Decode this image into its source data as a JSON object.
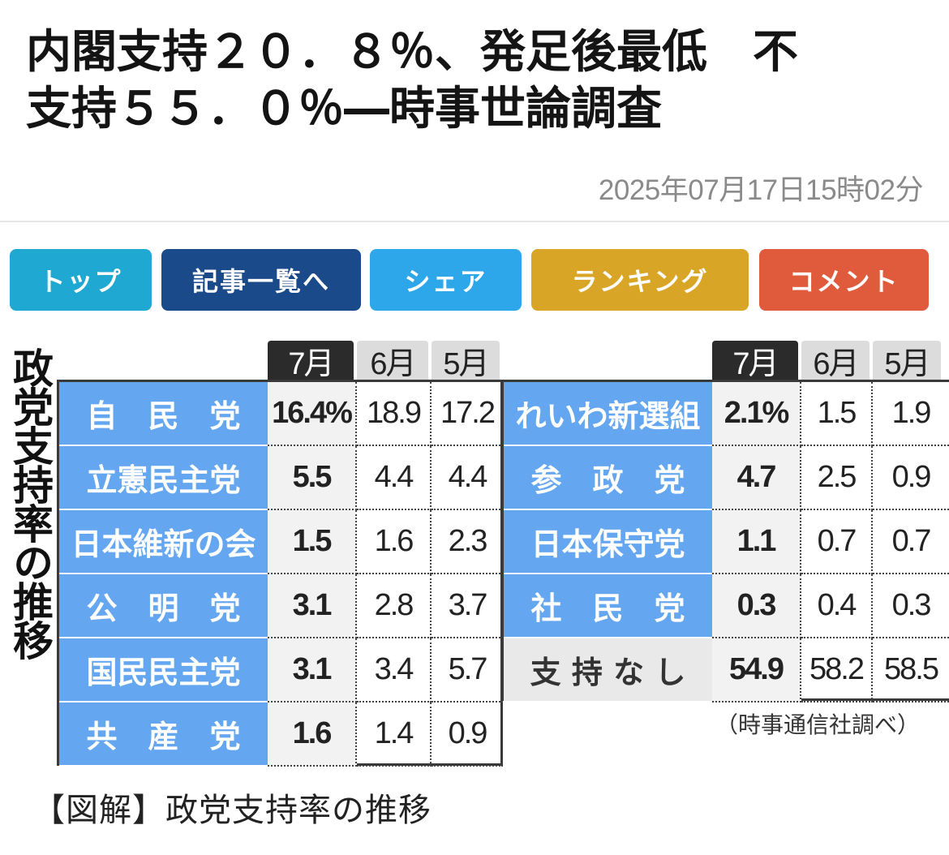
{
  "article": {
    "title_line1": "内閣支持２０．８％、発足後最低　不",
    "title_line2": "支持５５．０％―時事世論調査",
    "timestamp": "2025年07月17日15時02分"
  },
  "nav": {
    "buttons": [
      {
        "label": "トップ",
        "color": "#1fa8d1"
      },
      {
        "label": "記事一覧へ",
        "color": "#1a4a8a"
      },
      {
        "label": "シェア",
        "color": "#2ea6ea"
      },
      {
        "label": "ランキング",
        "color": "#d9a526"
      },
      {
        "label": "コメント",
        "color": "#e05a3c"
      }
    ]
  },
  "infographic": {
    "vertical_title": "政党支持率の推移",
    "months": [
      "7月",
      "6月",
      "5月"
    ],
    "left_table": [
      {
        "party": "自　民　党",
        "jul": "16.4%",
        "jun": "18.9",
        "may": "17.2"
      },
      {
        "party": "立憲民主党",
        "jul": "5.5",
        "jun": "4.4",
        "may": "4.4"
      },
      {
        "party": "日本維新の会",
        "jul": "1.5",
        "jun": "1.6",
        "may": "2.3"
      },
      {
        "party": "公　明　党",
        "jul": "3.1",
        "jun": "2.8",
        "may": "3.7"
      },
      {
        "party": "国民民主党",
        "jul": "3.1",
        "jun": "3.4",
        "may": "5.7"
      },
      {
        "party": "共　産　党",
        "jul": "1.6",
        "jun": "1.4",
        "may": "0.9"
      }
    ],
    "right_table": [
      {
        "party": "れいわ新選組",
        "jul": "2.1%",
        "jun": "1.5",
        "may": "1.9"
      },
      {
        "party": "参　政　党",
        "jul": "4.7",
        "jun": "2.5",
        "may": "0.9"
      },
      {
        "party": "日本保守党",
        "jul": "1.1",
        "jun": "0.7",
        "may": "0.7"
      },
      {
        "party": "社　民　党",
        "jul": "0.3",
        "jun": "0.4",
        "may": "0.3"
      },
      {
        "party": "支 持 な し",
        "jul": "54.9",
        "jun": "58.2",
        "may": "58.5"
      }
    ],
    "source": "（時事通信社調べ）",
    "caption": "【図解】政党支持率の推移"
  }
}
